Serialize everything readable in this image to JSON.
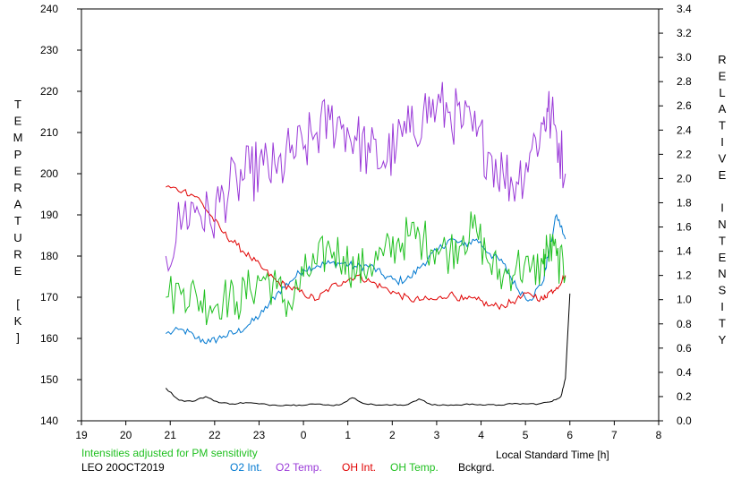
{
  "chart_data": {
    "type": "line",
    "left_axis_label": "TEMPERATURE [K]",
    "right_axis_label": "RELATIVE INTENSITY",
    "xlabel": "Local Standard Time [h]",
    "xlim": [
      19,
      32
    ],
    "x_tick_labels": [
      "19",
      "20",
      "21",
      "22",
      "23",
      "0",
      "1",
      "2",
      "3",
      "4",
      "5",
      "6",
      "7",
      "8"
    ],
    "ylim_left": [
      140,
      240
    ],
    "ylim_right": [
      0.0,
      3.4
    ],
    "y_left_ticks": [
      "140",
      "150",
      "160",
      "170",
      "180",
      "190",
      "200",
      "210",
      "220",
      "230",
      "240"
    ],
    "y_right_ticks": [
      "0.0",
      "0.2",
      "0.4",
      "0.6",
      "0.8",
      "1.0",
      "1.2",
      "1.4",
      "1.6",
      "1.8",
      "2.0",
      "2.2",
      "2.4",
      "2.6",
      "2.8",
      "3.0",
      "3.2",
      "3.4"
    ],
    "note": "Intensities adjusted for PM sensitivity",
    "station": "LEO 20OCT2019",
    "colors": {
      "o2_int": "#0078d0",
      "o2_temp": "#9a3ad8",
      "oh_int": "#e00000",
      "oh_temp": "#20c020",
      "bckgrd": "#000000",
      "note": "#20c020"
    },
    "series": [
      {
        "name": "O2 Int.",
        "axis": "right",
        "x": [
          20.9,
          21.3,
          21.6,
          21.9,
          22.2,
          22.5,
          22.8,
          23.1,
          23.4,
          23.7,
          24.0,
          24.3,
          24.6,
          24.9,
          25.2,
          25.5,
          25.8,
          26.1,
          26.4,
          26.7,
          27.0,
          27.3,
          27.6,
          27.9,
          28.2,
          28.5,
          28.8,
          29.1,
          29.4,
          29.5,
          29.7,
          29.9
        ],
        "y": [
          0.72,
          0.75,
          0.68,
          0.65,
          0.7,
          0.73,
          0.8,
          0.9,
          1.05,
          1.15,
          1.25,
          1.28,
          1.3,
          1.3,
          1.27,
          1.28,
          1.2,
          1.15,
          1.18,
          1.3,
          1.4,
          1.5,
          1.45,
          1.5,
          1.38,
          1.3,
          1.1,
          1.0,
          1.15,
          1.35,
          1.7,
          1.5
        ]
      },
      {
        "name": "O2 Temp.",
        "axis": "left",
        "x": [
          20.9,
          21.3,
          21.6,
          21.9,
          22.2,
          22.5,
          22.8,
          23.1,
          23.4,
          23.7,
          24.0,
          24.3,
          24.6,
          24.9,
          25.2,
          25.5,
          25.8,
          26.1,
          26.4,
          26.7,
          27.0,
          27.3,
          27.6,
          27.9,
          28.2,
          28.5,
          28.8,
          29.1,
          29.4,
          29.5,
          29.7,
          29.9
        ],
        "y": [
          180,
          190,
          192,
          188,
          195,
          198,
          200,
          202,
          200,
          205,
          206,
          210,
          213,
          212,
          208,
          205,
          203,
          207,
          210,
          215,
          216,
          215,
          212,
          209,
          205,
          200,
          198,
          205,
          212,
          215,
          210,
          200
        ]
      },
      {
        "name": "OH Int.",
        "axis": "right",
        "x": [
          20.9,
          21.3,
          21.6,
          21.9,
          22.2,
          22.5,
          22.8,
          23.1,
          23.4,
          23.7,
          24.0,
          24.3,
          24.6,
          24.9,
          25.2,
          25.5,
          25.8,
          26.1,
          26.4,
          26.7,
          27.0,
          27.3,
          27.6,
          27.9,
          28.2,
          28.5,
          28.8,
          29.1,
          29.4,
          29.5,
          29.7,
          29.9
        ],
        "y": [
          1.93,
          1.9,
          1.85,
          1.7,
          1.55,
          1.45,
          1.35,
          1.25,
          1.15,
          1.1,
          1.05,
          1.0,
          1.1,
          1.15,
          1.2,
          1.15,
          1.1,
          1.05,
          1.0,
          1.0,
          1.0,
          1.05,
          1.0,
          1.0,
          0.95,
          0.95,
          1.0,
          1.05,
          1.0,
          1.05,
          1.1,
          1.2
        ]
      },
      {
        "name": "OH Temp.",
        "axis": "left",
        "x": [
          20.9,
          21.3,
          21.6,
          21.9,
          22.2,
          22.5,
          22.8,
          23.1,
          23.4,
          23.7,
          24.0,
          24.3,
          24.6,
          24.9,
          25.2,
          25.5,
          25.8,
          26.1,
          26.4,
          26.7,
          27.0,
          27.3,
          27.6,
          27.9,
          28.2,
          28.5,
          28.8,
          29.1,
          29.4,
          29.5,
          29.7,
          29.9
        ],
        "y": [
          170,
          172,
          170,
          168,
          170,
          169,
          172,
          175,
          172,
          168,
          175,
          178,
          182,
          180,
          176,
          178,
          180,
          183,
          185,
          184,
          182,
          181,
          185,
          186,
          178,
          175,
          178,
          176,
          178,
          182,
          180,
          175
        ]
      },
      {
        "name": "Bckgrd.",
        "axis": "right",
        "x": [
          20.9,
          21.2,
          21.5,
          21.8,
          22.1,
          22.4,
          22.7,
          23.0,
          23.3,
          23.6,
          23.9,
          24.2,
          24.5,
          24.8,
          25.1,
          25.4,
          25.7,
          26.0,
          26.3,
          26.6,
          26.9,
          27.2,
          27.5,
          27.8,
          28.1,
          28.4,
          28.7,
          29.0,
          29.3,
          29.6,
          29.8,
          29.9,
          30.0
        ],
        "y": [
          0.27,
          0.17,
          0.16,
          0.2,
          0.15,
          0.14,
          0.15,
          0.14,
          0.13,
          0.13,
          0.13,
          0.14,
          0.13,
          0.13,
          0.19,
          0.14,
          0.13,
          0.13,
          0.13,
          0.18,
          0.13,
          0.13,
          0.13,
          0.14,
          0.13,
          0.13,
          0.14,
          0.14,
          0.14,
          0.16,
          0.2,
          0.35,
          1.05
        ]
      }
    ]
  }
}
